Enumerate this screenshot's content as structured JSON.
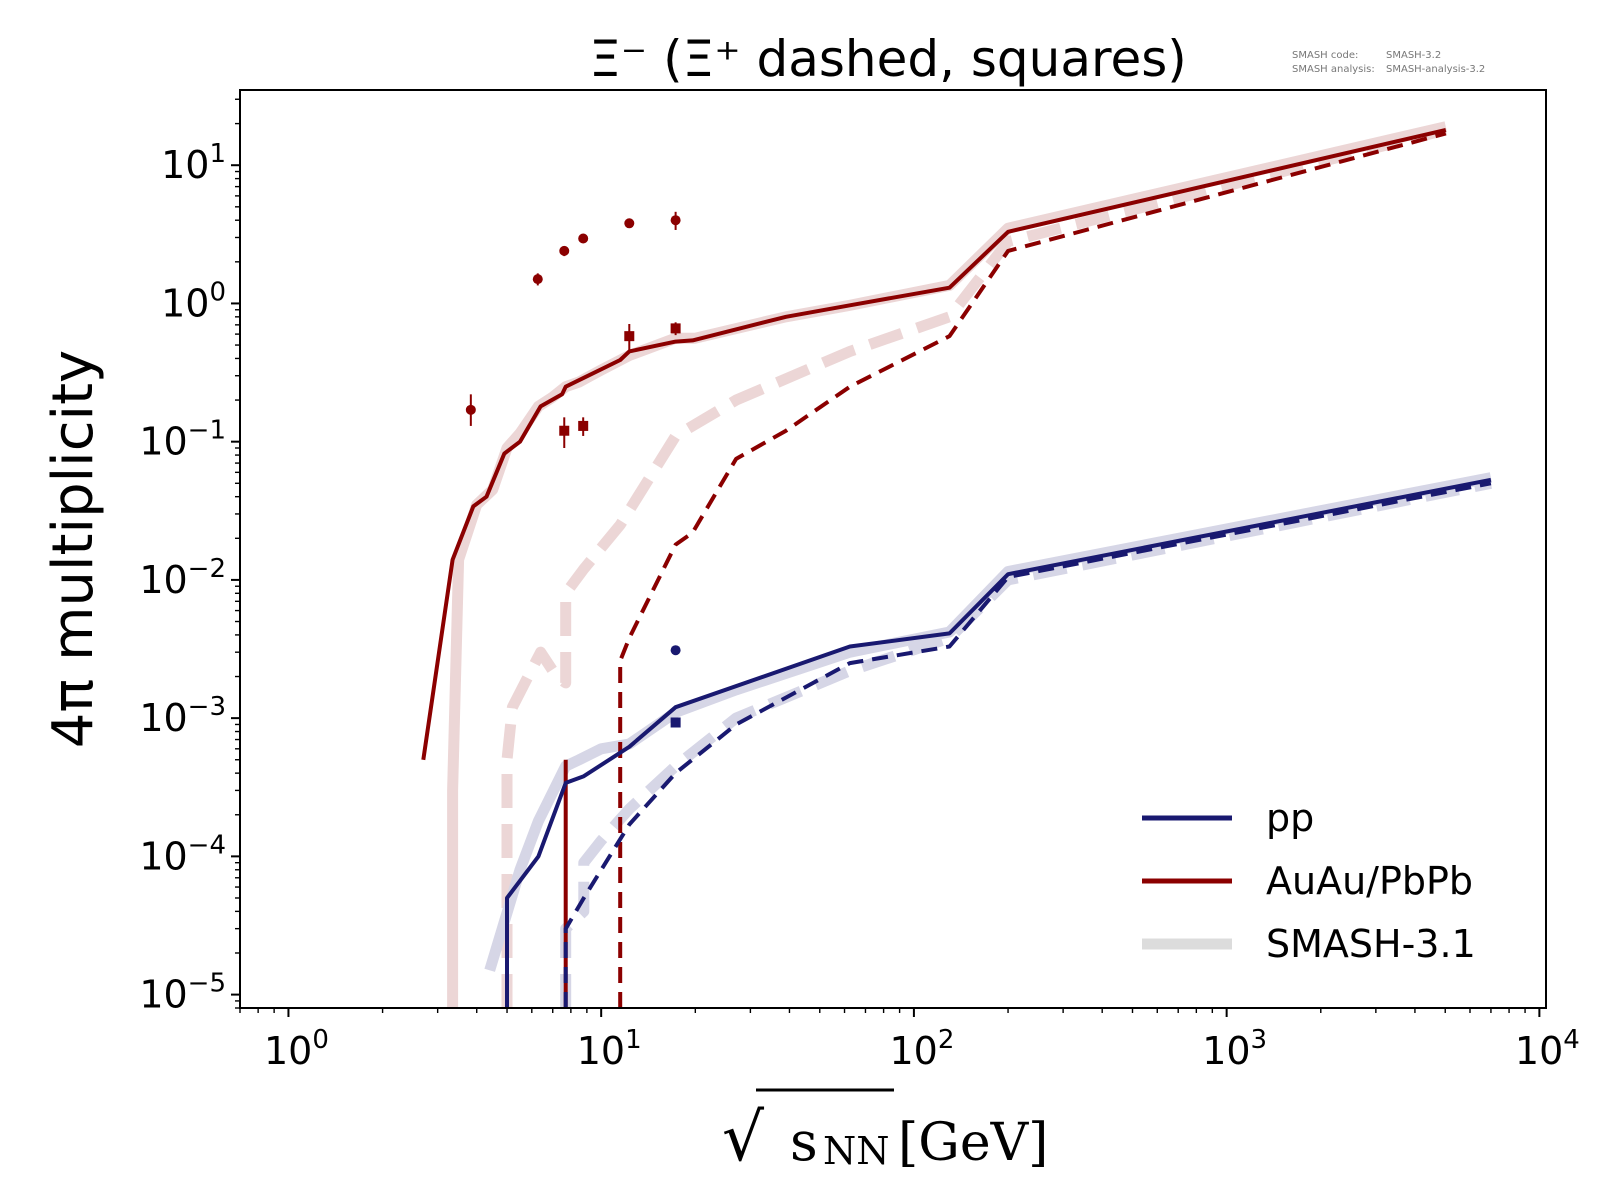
{
  "colors": {
    "pp": "#191970",
    "auau": "#8b0000",
    "pp_ref": "#d6d6e6",
    "auau_ref": "#ecd6d6",
    "legend_ref": "#dcdcdc",
    "axis": "#000000"
  },
  "chart_data": {
    "type": "line",
    "title": "Ξ⁻ (Ξ⁺ dashed, squares)",
    "annotation": {
      "line1_label": "SMASH code:",
      "line1_value": "SMASH-3.2",
      "line2_label": "SMASH analysis:",
      "line2_value": "SMASH-analysis-3.2"
    },
    "xlabel_sqrt": "√",
    "xlabel_s": "s",
    "xlabel_sub": "NN",
    "xlabel_unit": "[GeV]",
    "ylabel": "4π multiplicity",
    "xscale": "log",
    "yscale": "log",
    "xlim": [
      0.7,
      10500
    ],
    "ylim": [
      8e-06,
      35
    ],
    "x_ticks": [
      {
        "value": 1,
        "base": "10",
        "exp": "0"
      },
      {
        "value": 10,
        "base": "10",
        "exp": "1"
      },
      {
        "value": 100,
        "base": "10",
        "exp": "2"
      },
      {
        "value": 1000,
        "base": "10",
        "exp": "3"
      },
      {
        "value": 10000,
        "base": "10",
        "exp": "4"
      }
    ],
    "y_ticks": [
      {
        "value": 1e-05,
        "base": "10",
        "exp": "−5"
      },
      {
        "value": 0.0001,
        "base": "10",
        "exp": "−4"
      },
      {
        "value": 0.001,
        "base": "10",
        "exp": "−3"
      },
      {
        "value": 0.01,
        "base": "10",
        "exp": "−2"
      },
      {
        "value": 0.1,
        "base": "10",
        "exp": "−1"
      },
      {
        "value": 1,
        "base": "10",
        "exp": "0"
      },
      {
        "value": 10,
        "base": "10",
        "exp": "1"
      }
    ],
    "legend": {
      "position": "lower right",
      "entries": [
        {
          "label": "pp",
          "color_key": "pp"
        },
        {
          "label": "AuAu/PbPb",
          "color_key": "auau"
        },
        {
          "label": "SMASH-3.1",
          "color_key": "legend_ref"
        }
      ]
    },
    "series": [
      {
        "name": "SMASH-3.1",
        "system": "AuAu/PbPb",
        "particle": "Ξ⁻",
        "style": "ref-solid",
        "color_key": "auau_ref",
        "x": [
          3.35,
          3.35,
          3.5,
          4.0,
          4.5,
          5.0,
          5.5,
          6.3,
          7.0,
          7.7,
          8.5,
          10,
          12.3,
          17.3,
          20,
          39,
          62.4,
          130,
          200,
          5020
        ],
        "y": [
          8e-06,
          0.0003,
          0.014,
          0.035,
          0.045,
          0.09,
          0.115,
          0.18,
          0.21,
          0.25,
          0.27,
          0.33,
          0.42,
          0.56,
          0.56,
          0.8,
          0.97,
          1.35,
          3.5,
          19
        ]
      },
      {
        "name": "SMASH-3.1",
        "system": "AuAu/PbPb",
        "particle": "Ξ⁺",
        "style": "ref-dashed",
        "color_key": "auau_ref",
        "x": [
          5.0,
          5.0,
          5.2,
          6.4,
          7.2,
          7.7,
          7.7,
          8.8,
          11.5,
          17.3,
          27,
          62.4,
          130,
          200,
          5020
        ],
        "y": [
          8e-06,
          0.0005,
          0.0012,
          0.003,
          0.002,
          0.0018,
          0.008,
          0.012,
          0.025,
          0.11,
          0.2,
          0.45,
          0.8,
          2.8,
          18
        ]
      },
      {
        "name": "SMASH-3.1",
        "system": "pp",
        "particle": "Ξ⁻",
        "style": "ref-solid",
        "color_key": "pp_ref",
        "x": [
          4.4,
          5.5,
          6.3,
          7.7,
          8.5,
          10,
          12.3,
          17.3,
          27,
          62.4,
          130,
          200,
          7000
        ],
        "y": [
          1.5e-05,
          8e-05,
          0.00018,
          0.00045,
          0.0005,
          0.0006,
          0.00065,
          0.0011,
          0.0016,
          0.003,
          0.0042,
          0.0115,
          0.055
        ]
      },
      {
        "name": "SMASH-3.1",
        "system": "pp",
        "particle": "Ξ⁺",
        "style": "ref-dashed",
        "color_key": "pp_ref",
        "x": [
          7.7,
          7.7,
          8.8,
          8.8,
          10,
          12.3,
          17.3,
          27,
          62.4,
          130,
          200,
          7000
        ],
        "y": [
          8e-06,
          3e-05,
          4e-05,
          9e-05,
          0.00013,
          0.00022,
          0.00045,
          0.001,
          0.0022,
          0.0038,
          0.01,
          0.05
        ]
      },
      {
        "name": "",
        "system": "AuAu/PbPb",
        "particle": "Ξ⁻",
        "style": "solid",
        "color_key": "auau",
        "x": [
          2.7,
          3.35,
          3.9,
          4.3,
          4.9,
          5.5,
          6.4,
          7.5,
          7.7,
          8.8,
          11.5,
          12.3,
          17.3,
          19.6,
          39,
          62.4,
          130,
          200,
          5020
        ],
        "y": [
          0.0005,
          0.014,
          0.034,
          0.04,
          0.082,
          0.1,
          0.18,
          0.22,
          0.25,
          0.29,
          0.39,
          0.45,
          0.53,
          0.54,
          0.8,
          0.97,
          1.3,
          3.3,
          18
        ]
      },
      {
        "name": "",
        "system": "AuAu/PbPb",
        "particle": "Ξ⁺",
        "style": "dashed",
        "color_key": "auau",
        "x": [
          11.5,
          11.5,
          12.3,
          17.3,
          19.6,
          27,
          39,
          62.4,
          130,
          200,
          5020
        ],
        "y": [
          8e-06,
          0.0026,
          0.0038,
          0.018,
          0.022,
          0.075,
          0.12,
          0.25,
          0.58,
          2.4,
          17
        ]
      },
      {
        "name": "",
        "system": "AuAu/PbPb",
        "particle": "Ξ⁻",
        "style": "spike",
        "color_key": "auau",
        "x": [
          7.7,
          7.7
        ],
        "y": [
          8e-06,
          0.0005
        ]
      },
      {
        "name": "",
        "system": "pp",
        "particle": "Ξ⁻",
        "style": "solid",
        "color_key": "pp",
        "x": [
          5.0,
          5.0,
          6.3,
          7.7,
          8.8,
          12.3,
          17.3,
          62.4,
          130,
          200,
          7000
        ],
        "y": [
          8e-06,
          5e-05,
          0.0001,
          0.00034,
          0.00038,
          0.00062,
          0.0012,
          0.0033,
          0.0041,
          0.011,
          0.053
        ]
      },
      {
        "name": "",
        "system": "pp",
        "particle": "Ξ⁺",
        "style": "dashed",
        "color_key": "pp",
        "x": [
          7.7,
          7.7,
          8.8,
          12.3,
          17.3,
          27,
          62.4,
          130,
          200,
          7000
        ],
        "y": [
          8e-06,
          3e-05,
          5e-05,
          0.00017,
          0.0004,
          0.0009,
          0.0025,
          0.0033,
          0.0105,
          0.05
        ]
      }
    ],
    "markers": [
      {
        "system": "AuAu/PbPb",
        "particle": "Ξ⁻",
        "shape": "circle",
        "color_key": "auau",
        "x": 3.83,
        "y": 0.17,
        "err": [
          0.13,
          0.22
        ]
      },
      {
        "system": "AuAu/PbPb",
        "particle": "Ξ⁻",
        "shape": "circle",
        "color_key": "auau",
        "x": 6.27,
        "y": 1.5,
        "err": [
          1.35,
          1.65
        ]
      },
      {
        "system": "AuAu/PbPb",
        "particle": "Ξ⁻",
        "shape": "circle",
        "color_key": "auau",
        "x": 7.62,
        "y": 2.4,
        "err": [
          2.2,
          2.6
        ]
      },
      {
        "system": "AuAu/PbPb",
        "particle": "Ξ⁻",
        "shape": "circle",
        "color_key": "auau",
        "x": 8.76,
        "y": 2.95,
        "err": [
          2.75,
          3.15
        ]
      },
      {
        "system": "AuAu/PbPb",
        "particle": "Ξ⁻",
        "shape": "circle",
        "color_key": "auau",
        "x": 12.3,
        "y": 3.8,
        "err": [
          3.7,
          3.9
        ]
      },
      {
        "system": "AuAu/PbPb",
        "particle": "Ξ⁻",
        "shape": "circle",
        "color_key": "auau",
        "x": 17.3,
        "y": 4.0,
        "err": [
          3.4,
          4.6
        ]
      },
      {
        "system": "AuAu/PbPb",
        "particle": "Ξ⁺",
        "shape": "square",
        "color_key": "auau",
        "x": 7.62,
        "y": 0.12,
        "err": [
          0.09,
          0.15
        ]
      },
      {
        "system": "AuAu/PbPb",
        "particle": "Ξ⁺",
        "shape": "square",
        "color_key": "auau",
        "x": 8.76,
        "y": 0.13,
        "err": [
          0.11,
          0.15
        ]
      },
      {
        "system": "AuAu/PbPb",
        "particle": "Ξ⁺",
        "shape": "square",
        "color_key": "auau",
        "x": 12.3,
        "y": 0.58,
        "err": [
          0.45,
          0.71
        ]
      },
      {
        "system": "AuAu/PbPb",
        "particle": "Ξ⁺",
        "shape": "square",
        "color_key": "auau",
        "x": 17.3,
        "y": 0.66,
        "err": [
          0.59,
          0.73
        ]
      },
      {
        "system": "pp",
        "particle": "Ξ⁻",
        "shape": "circle",
        "color_key": "pp",
        "x": 17.3,
        "y": 0.0031,
        "err": [
          0.003,
          0.0032
        ]
      },
      {
        "system": "pp",
        "particle": "Ξ⁺",
        "shape": "square",
        "color_key": "pp",
        "x": 17.3,
        "y": 0.00093,
        "err": [
          0.0009,
          0.00096
        ]
      }
    ]
  }
}
